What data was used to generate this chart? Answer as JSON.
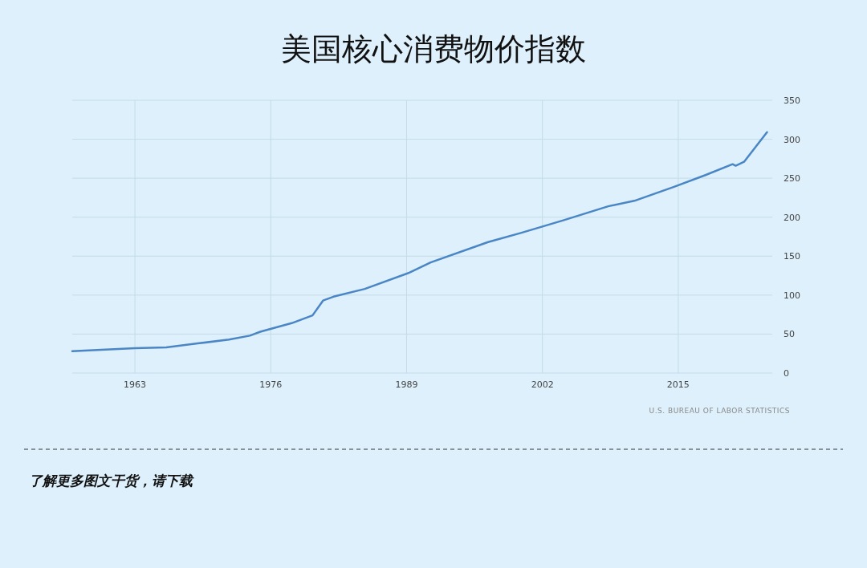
{
  "chart_data": {
    "type": "line",
    "title": "美国核心消费物价指数",
    "x": [
      1957,
      1963,
      1966,
      1969,
      1972,
      1974,
      1975,
      1978,
      1980,
      1981,
      1982,
      1985,
      1989.3,
      1991.3,
      1996.8,
      2000,
      2002,
      2004,
      2008.3,
      2010.8,
      2014.6,
      2017.6,
      2020.2,
      2020.5,
      2021.3,
      2023.5
    ],
    "series": [
      {
        "color": "#4a86c5",
        "values": [
          28,
          32,
          33,
          38,
          43,
          48,
          53,
          64,
          74,
          93,
          98,
          108,
          129,
          142,
          168,
          180,
          188,
          196,
          214,
          221,
          239,
          254,
          268,
          266,
          271,
          309
        ]
      }
    ],
    "xlim": [
      1957,
      2024
    ],
    "xticks": [
      1963,
      1976,
      1989,
      2002,
      2015
    ],
    "ylim": [
      0,
      350
    ],
    "yticks": [
      0,
      50,
      100,
      150,
      200,
      250,
      300,
      350
    ],
    "grid": true,
    "marker": "none",
    "line_style": "solid",
    "annotations": [
      "U.S. BUREAU OF LABOR STATISTICS",
      "了解更多图文干货，请下载"
    ]
  }
}
